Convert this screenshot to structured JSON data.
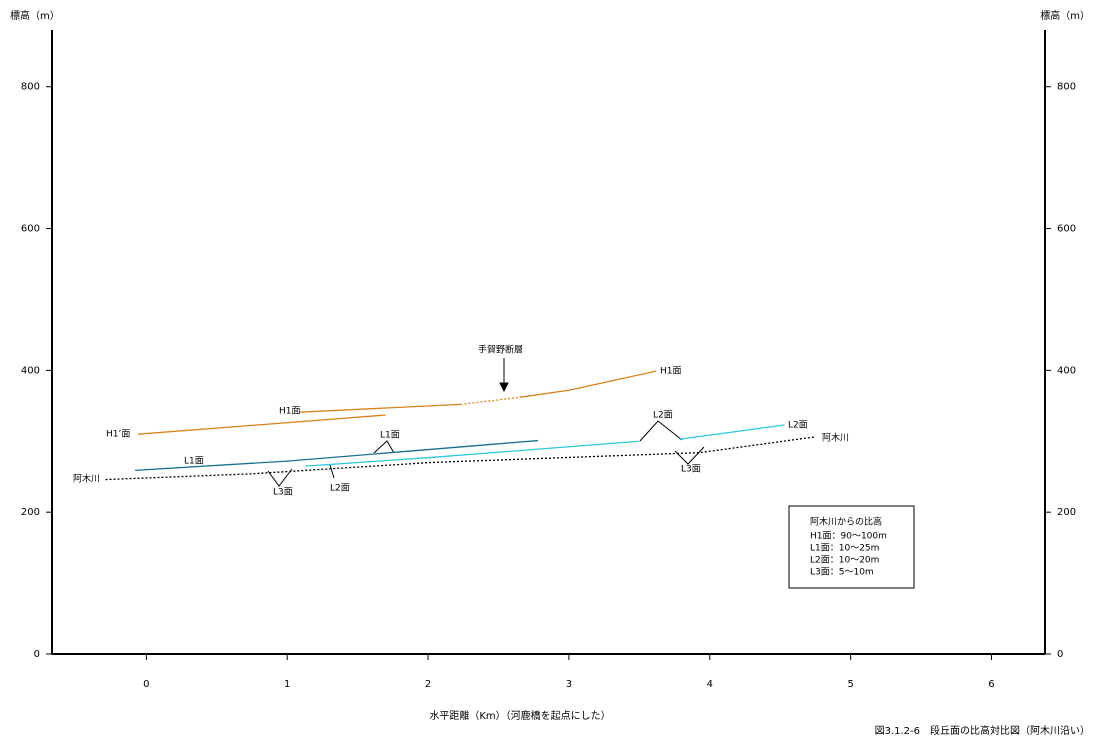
{
  "chart_data": {
    "type": "line",
    "y_label": "標高（m）",
    "x_label": "水平距離（Km）（河鹿橋を起点にした）",
    "caption": "図3.1.2-6　段丘面の比高対比図（阿木川沿い）",
    "xlim": [
      -0.67,
      6.38
    ],
    "ylim": [
      0,
      880
    ],
    "xticks": [
      0,
      1,
      2,
      3,
      4,
      5,
      6
    ],
    "yticks": [
      0,
      200,
      400,
      600,
      800
    ],
    "series": [
      {
        "color": "#d9821a",
        "dash": false,
        "x": [
          -0.06,
          1.7
        ],
        "values": [
          310,
          337
        ]
      },
      {
        "color": "#d9821a",
        "dash": false,
        "x": [
          1.09,
          2.23
        ],
        "values": [
          341,
          352
        ]
      },
      {
        "color": "#d9821a",
        "dash": true,
        "x": [
          2.23,
          2.65
        ],
        "values": [
          352,
          362
        ]
      },
      {
        "color": "#d9821a",
        "dash": false,
        "x": [
          2.65,
          3.0,
          3.62
        ],
        "values": [
          362,
          372,
          399
        ]
      },
      {
        "color": "#17708f",
        "dash": false,
        "x": [
          -0.08,
          1.0,
          2.23,
          2.78
        ],
        "values": [
          259,
          272,
          292,
          301
        ]
      },
      {
        "color": "#2cc6dd",
        "dash": false,
        "x": [
          1.13,
          2.01,
          3.5
        ],
        "values": [
          265,
          277,
          300
        ]
      },
      {
        "color": "#2cc6dd",
        "dash": false,
        "x": [
          3.79,
          4.53
        ],
        "values": [
          303,
          323
        ]
      },
      {
        "color": "#000000",
        "dash": true,
        "x": [
          -0.29,
          0.74,
          2.01,
          3.93,
          4.74
        ],
        "values": [
          246,
          254,
          270,
          284,
          306
        ]
      }
    ],
    "annotations": [
      "H1面",
      "H1面",
      "H1’面",
      "L1面",
      "L1面",
      "L2面",
      "L2面",
      "L2面",
      "L3面",
      "L3面",
      "阿木川",
      "阿木川",
      "手賀野断層"
    ],
    "note": {
      "title": "阿木川からの比高",
      "rows": [
        "H1面：90〜100m",
        "L1面：10〜25m",
        "L2面：10〜20m",
        "L3面：5〜10m"
      ]
    }
  }
}
